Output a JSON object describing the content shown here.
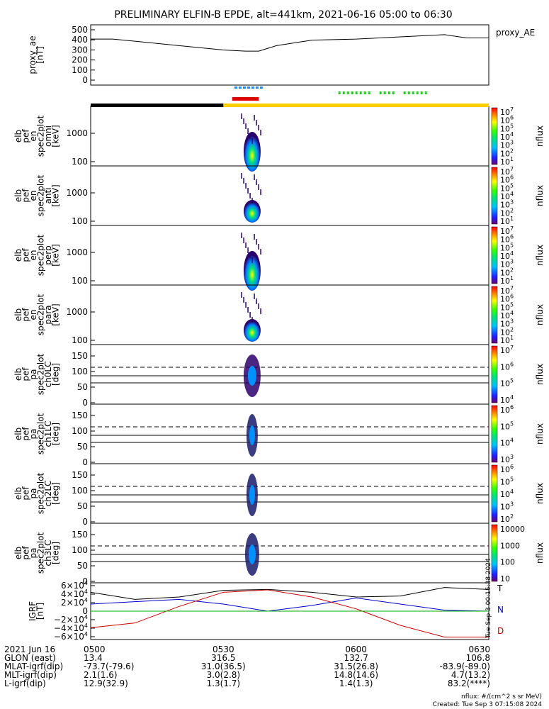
{
  "title": "PRELIMINARY ELFIN-B EPDE, alt=441km, 2021-06-16 05:00 to 06:30",
  "chart_data": {
    "type": "line",
    "time_range": [
      "05:00",
      "06:30"
    ],
    "panels": [
      {
        "id": "proxy_ae",
        "ylabel": [
          "proxy_ae",
          "[nT]"
        ],
        "yticks": [
          "500",
          "400",
          "300",
          "200",
          "100",
          "0"
        ],
        "ylim": [
          0,
          550
        ],
        "legend": "proxy_AE",
        "series": [
          {
            "name": "proxy_AE",
            "x_min": [
              0,
              5,
              10,
              20,
              30,
              35,
              38,
              42,
              50,
              60,
              70,
              80,
              85,
              90
            ],
            "values": [
              420,
              420,
              400,
              360,
              320,
              310,
              310,
              360,
              410,
              420,
              440,
              460,
              430,
              430
            ]
          }
        ]
      },
      {
        "id": "en_omni",
        "ylabel": [
          "elb",
          "pef",
          "en",
          "spec2plot",
          "omni",
          "[keV]"
        ],
        "yticks": [
          "1000",
          "100"
        ],
        "cb_label": "nflux",
        "cb_ticks": [
          "10^7",
          "10^6",
          "10^5",
          "10^4",
          "10^3",
          "10^2",
          "10^1"
        ]
      },
      {
        "id": "en_anti",
        "ylabel": [
          "elb",
          "pef",
          "en",
          "spec2plot",
          "anti",
          "[keV]"
        ],
        "yticks": [
          "1000",
          "100"
        ],
        "cb_label": "nflux",
        "cb_ticks": [
          "10^7",
          "10^6",
          "10^5",
          "10^4",
          "10^3",
          "10^2",
          "10^1"
        ]
      },
      {
        "id": "en_perp",
        "ylabel": [
          "elb",
          "pef",
          "en",
          "spec2plot",
          "perp",
          "[keV]"
        ],
        "yticks": [
          "1000",
          "100"
        ],
        "cb_label": "nflux",
        "cb_ticks": [
          "10^7",
          "10^6",
          "10^5",
          "10^4",
          "10^3",
          "10^2",
          "10^1"
        ]
      },
      {
        "id": "en_para",
        "ylabel": [
          "elb",
          "pef",
          "en",
          "spec2plot",
          "para",
          "[keV]"
        ],
        "yticks": [
          "1000",
          "100"
        ],
        "cb_label": "nflux",
        "cb_ticks": [
          "10^7",
          "10^6",
          "10^5",
          "10^4",
          "10^3",
          "10^2",
          "10^1"
        ]
      },
      {
        "id": "pa_ch0",
        "ylabel": [
          "elb",
          "pef",
          "pa",
          "spec2plot",
          "ch0LC",
          "[deg]"
        ],
        "yticks": [
          "150",
          "100",
          "50",
          "0"
        ],
        "cb_label": "nflux",
        "cb_ticks": [
          "10^7",
          "10^6",
          "10^5",
          "10^4"
        ]
      },
      {
        "id": "pa_ch1",
        "ylabel": [
          "elb",
          "pef",
          "pa",
          "spec2plot",
          "ch1LC",
          "[deg]"
        ],
        "yticks": [
          "150",
          "100",
          "50",
          "0"
        ],
        "cb_label": "nflux",
        "cb_ticks": [
          "10^6",
          "10^5",
          "10^4",
          "10^3"
        ]
      },
      {
        "id": "pa_ch2",
        "ylabel": [
          "elb",
          "pef",
          "pa",
          "spec2plot",
          "ch2LC",
          "[deg]"
        ],
        "yticks": [
          "150",
          "100",
          "50",
          "0"
        ],
        "cb_label": "nflux",
        "cb_ticks": [
          "10^6",
          "10^5",
          "10^4",
          "10^3",
          "10^2"
        ]
      },
      {
        "id": "pa_ch3",
        "ylabel": [
          "elb",
          "pef",
          "pa",
          "spec2plot",
          "ch3LC",
          "[deg]"
        ],
        "yticks": [
          "150",
          "100",
          "50",
          "0"
        ],
        "cb_label": "nflux",
        "cb_ticks": [
          "10000",
          "1000",
          "100",
          "10"
        ]
      },
      {
        "id": "igrf",
        "ylabel": [
          "IGRF",
          "[nT]"
        ],
        "yticks": [
          "6×10^4",
          "4×10^4",
          "2×10^4",
          "0",
          "−2×10^4",
          "−4×10^4",
          "−6×10^4"
        ],
        "ylim": [
          -60000,
          60000
        ],
        "legend": [
          "T",
          "N",
          "D"
        ],
        "series": [
          {
            "name": "T",
            "x_min": [
              0,
              10,
              20,
              30,
              40,
              50,
              60,
              70,
              80,
              90
            ],
            "values": [
              40000,
              25000,
              30000,
              44000,
              46000,
              40000,
              30000,
              32000,
              50000,
              46000
            ]
          },
          {
            "name": "N",
            "x_min": [
              0,
              10,
              20,
              30,
              40,
              50,
              60,
              70,
              80,
              90
            ],
            "values": [
              15000,
              20000,
              25000,
              15000,
              0,
              12000,
              28000,
              15000,
              2000,
              0
            ]
          },
          {
            "name": "D",
            "x_min": [
              0,
              10,
              20,
              30,
              40,
              50,
              60,
              70,
              80,
              90
            ],
            "values": [
              -35000,
              -25000,
              10000,
              40000,
              45000,
              30000,
              5000,
              -30000,
              -55000,
              -55000
            ]
          }
        ]
      }
    ]
  },
  "bottom_table": {
    "rows": [
      {
        "label": "2021 Jun 16",
        "values": [
          "0500",
          "0530",
          "0600",
          "0630"
        ]
      },
      {
        "label": "GLON (east)",
        "values": [
          "13.4",
          "316.5",
          "132.7",
          "106.8"
        ]
      },
      {
        "label": "MLAT-igrf(dip)",
        "values": [
          "-73.7(-79.6)",
          "31.0(36.5)",
          "31.5(26.8)",
          "-83.9(-89.0)"
        ]
      },
      {
        "label": "MLT-igrf(dip)",
        "values": [
          "2.1(1.6)",
          "3.0(2.8)",
          "14.8(14.6)",
          "4.7(13.2)"
        ]
      },
      {
        "label": "L-igrf(dip)",
        "values": [
          "12.9(32.9)",
          "1.3(1.7)",
          "1.4(1.3)",
          "83.2(****)"
        ]
      }
    ]
  },
  "footer": {
    "units": "nflux: #/(cm^2 s sr MeV)",
    "created": "Created: Tue Sep  3 07:15:08 2024",
    "side_stamp": "Tue Sep 3 00:15:38 2024"
  }
}
